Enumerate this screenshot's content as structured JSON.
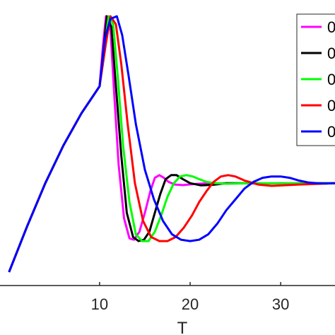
{
  "chart_data": {
    "type": "line",
    "xlabel": "T",
    "xlim": [
      -1,
      36
    ],
    "ylim": [
      0,
      1
    ],
    "x_ticks": [
      "10",
      "20",
      "30"
    ],
    "grid": false,
    "legend_position": "top-right",
    "series": [
      {
        "name": "0",
        "color": "#FF00FF",
        "x": [
          0,
          2,
          4,
          6,
          8,
          10,
          10.4,
          10.7,
          11.2,
          11.6,
          12.1,
          12.7,
          13.3,
          13.8,
          14.4,
          15.0,
          15.6,
          16.1,
          16.6,
          17.1,
          17.6,
          18.3,
          19.2,
          20.5,
          22,
          24,
          27,
          30,
          33,
          36
        ],
        "y": [
          0.05,
          0.22,
          0.38,
          0.52,
          0.64,
          0.74,
          0.9,
          1.0,
          0.95,
          0.72,
          0.45,
          0.25,
          0.175,
          0.17,
          0.2,
          0.27,
          0.35,
          0.4,
          0.41,
          0.4,
          0.385,
          0.375,
          0.373,
          0.377,
          0.38,
          0.38,
          0.379,
          0.38,
          0.38,
          0.38
        ]
      },
      {
        "name": "0",
        "color": "#000000",
        "x": [
          0,
          2,
          4,
          6,
          8,
          10,
          10.5,
          10.8,
          11.3,
          11.8,
          12.4,
          13.0,
          13.7,
          14.3,
          14.9,
          15.5,
          16.1,
          16.7,
          17.3,
          17.9,
          18.5,
          19.2,
          20.0,
          21.2,
          22.5,
          24,
          27,
          30,
          33,
          36
        ],
        "y": [
          0.05,
          0.22,
          0.38,
          0.52,
          0.64,
          0.74,
          0.9,
          1.0,
          0.96,
          0.74,
          0.48,
          0.27,
          0.18,
          0.165,
          0.17,
          0.2,
          0.27,
          0.34,
          0.395,
          0.41,
          0.41,
          0.395,
          0.38,
          0.372,
          0.374,
          0.38,
          0.38,
          0.379,
          0.38,
          0.38
        ]
      },
      {
        "name": "0",
        "color": "#00FF00",
        "x": [
          0,
          2,
          4,
          6,
          8,
          10,
          10.6,
          11.0,
          11.5,
          12.0,
          12.6,
          13.3,
          14.0,
          14.7,
          15.4,
          16.1,
          16.8,
          17.5,
          18.2,
          18.9,
          19.6,
          20.3,
          21.0,
          21.8,
          22.8,
          24,
          27,
          30,
          33,
          36
        ],
        "y": [
          0.05,
          0.22,
          0.38,
          0.52,
          0.64,
          0.74,
          0.9,
          1.0,
          0.97,
          0.78,
          0.52,
          0.31,
          0.19,
          0.165,
          0.165,
          0.2,
          0.26,
          0.33,
          0.38,
          0.405,
          0.41,
          0.405,
          0.395,
          0.385,
          0.38,
          0.378,
          0.38,
          0.379,
          0.38,
          0.38
        ]
      },
      {
        "name": "0",
        "color": "#FF0000",
        "x": [
          0,
          2,
          4,
          6,
          8,
          10,
          10.7,
          11.2,
          11.8,
          12.4,
          13.1,
          13.9,
          14.8,
          15.7,
          16.6,
          17.5,
          18.4,
          19.3,
          20.2,
          21.0,
          21.8,
          22.6,
          23.4,
          24.2,
          25,
          26,
          27.5,
          29,
          32,
          36
        ],
        "y": [
          0.05,
          0.22,
          0.38,
          0.52,
          0.64,
          0.74,
          0.9,
          1.0,
          0.97,
          0.82,
          0.6,
          0.38,
          0.24,
          0.18,
          0.165,
          0.165,
          0.18,
          0.215,
          0.26,
          0.31,
          0.35,
          0.385,
          0.405,
          0.41,
          0.405,
          0.39,
          0.375,
          0.37,
          0.375,
          0.38
        ]
      },
      {
        "name": "0",
        "color": "#0000FF",
        "x": [
          0,
          2,
          4,
          6,
          8,
          10,
          10.6,
          11.2,
          11.9,
          12.5,
          13.2,
          14.0,
          15.0,
          16.0,
          17.0,
          18.0,
          19.0,
          20.0,
          21.0,
          22.0,
          23.0,
          24.0,
          25.0,
          26.0,
          27.0,
          28.0,
          29.0,
          30.0,
          31.0,
          32.0,
          33.0,
          34.0,
          35.0,
          36.0
        ],
        "y": [
          0.05,
          0.22,
          0.38,
          0.52,
          0.64,
          0.74,
          0.92,
          0.99,
          1.0,
          0.93,
          0.78,
          0.6,
          0.43,
          0.32,
          0.24,
          0.19,
          0.17,
          0.165,
          0.17,
          0.19,
          0.23,
          0.28,
          0.32,
          0.36,
          0.385,
          0.4,
          0.405,
          0.405,
          0.4,
          0.39,
          0.383,
          0.38,
          0.379,
          0.38
        ]
      }
    ]
  }
}
